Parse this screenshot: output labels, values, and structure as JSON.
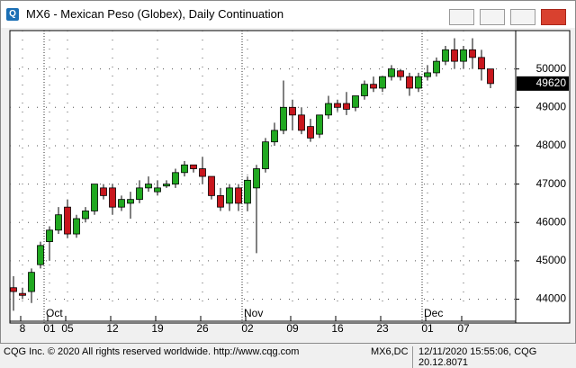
{
  "window": {
    "title": "MX6 - Mexican Peso (Globex), Daily Continuation"
  },
  "footer": {
    "left": "CQG Inc. © 2020 All rights reserved worldwide. http://www.cqg.com",
    "symbol": "MX6,DC",
    "timestamp": "12/11/2020 15:55:06, CQG 20.12.8071"
  },
  "chart_data": {
    "type": "candlestick",
    "categories": [
      null,
      "8",
      null,
      null,
      "01",
      null,
      "05",
      null,
      null,
      null,
      null,
      "12",
      null,
      null,
      null,
      null,
      "19",
      null,
      null,
      null,
      null,
      "26",
      null,
      null,
      null,
      null,
      "02",
      null,
      null,
      null,
      null,
      "09",
      null,
      null,
      null,
      null,
      "16",
      null,
      null,
      null,
      null,
      "23",
      null,
      null,
      null,
      null,
      "01",
      null,
      null,
      null,
      "07",
      null,
      null,
      null
    ],
    "category_groups": [
      null,
      null,
      null,
      null,
      "Oct",
      null,
      null,
      null,
      null,
      null,
      null,
      null,
      null,
      null,
      null,
      null,
      null,
      null,
      null,
      null,
      null,
      null,
      null,
      null,
      null,
      null,
      "Nov",
      null,
      null,
      null,
      null,
      null,
      null,
      null,
      null,
      null,
      null,
      null,
      null,
      null,
      null,
      null,
      null,
      null,
      null,
      null,
      "Dec",
      null,
      null,
      null,
      null,
      null,
      null,
      null
    ],
    "open": [
      44300,
      44150,
      44200,
      44900,
      45500,
      45800,
      46400,
      45700,
      46100,
      46300,
      46900,
      46900,
      46400,
      46500,
      46600,
      46900,
      46800,
      46950,
      47000,
      47300,
      47500,
      47400,
      47200,
      46700,
      46500,
      46900,
      46500,
      46900,
      47400,
      48100,
      48400,
      49000,
      48800,
      48500,
      48300,
      48800,
      49100,
      49100,
      49000,
      49300,
      49600,
      49500,
      49800,
      49950,
      49800,
      49500,
      49800,
      49900,
      50200,
      50500,
      50200,
      50500,
      50300,
      50000
    ],
    "high": [
      44600,
      44300,
      44800,
      45500,
      45900,
      46400,
      46600,
      46200,
      46400,
      47000,
      47000,
      47000,
      46700,
      46800,
      47100,
      47200,
      47100,
      47100,
      47400,
      47600,
      47500,
      47700,
      47200,
      46900,
      47000,
      47000,
      47200,
      47500,
      48200,
      48600,
      49700,
      49200,
      49000,
      48700,
      48800,
      49300,
      49200,
      49400,
      49300,
      49700,
      49800,
      49800,
      50100,
      50000,
      49900,
      49900,
      50100,
      50300,
      50600,
      50800,
      50600,
      50800,
      50500,
      50000
    ],
    "low": [
      43700,
      44000,
      43900,
      44800,
      45000,
      45700,
      45600,
      45600,
      46000,
      46200,
      46600,
      46200,
      46300,
      46100,
      46500,
      46800,
      46700,
      46900,
      46900,
      47200,
      47300,
      47000,
      46600,
      46300,
      46300,
      46300,
      46300,
      45200,
      47300,
      48000,
      48300,
      48400,
      48300,
      48100,
      48200,
      48700,
      48900,
      48800,
      48900,
      49200,
      49400,
      49400,
      49700,
      49700,
      49300,
      49400,
      49700,
      49800,
      50100,
      50000,
      50000,
      50000,
      49700,
      49500
    ],
    "close": [
      44200,
      44100,
      44700,
      45400,
      45800,
      46200,
      45700,
      46100,
      46300,
      47000,
      46700,
      46400,
      46600,
      46600,
      46900,
      47000,
      46900,
      47000,
      47300,
      47500,
      47400,
      47200,
      46700,
      46400,
      46900,
      46500,
      47100,
      47400,
      48100,
      48400,
      49000,
      48800,
      48400,
      48200,
      48800,
      49100,
      49000,
      48950,
      49300,
      49600,
      49500,
      49800,
      50000,
      49800,
      49500,
      49800,
      49900,
      50200,
      50500,
      50200,
      50500,
      50300,
      50000,
      49620
    ],
    "up_color": "#20a820",
    "down_color": "#c8161d",
    "last_price": 49620,
    "ylim": [
      43450,
      51000
    ],
    "yticks": [
      44000,
      45000,
      46000,
      47000,
      48000,
      49000,
      50000
    ],
    "grid": true
  }
}
